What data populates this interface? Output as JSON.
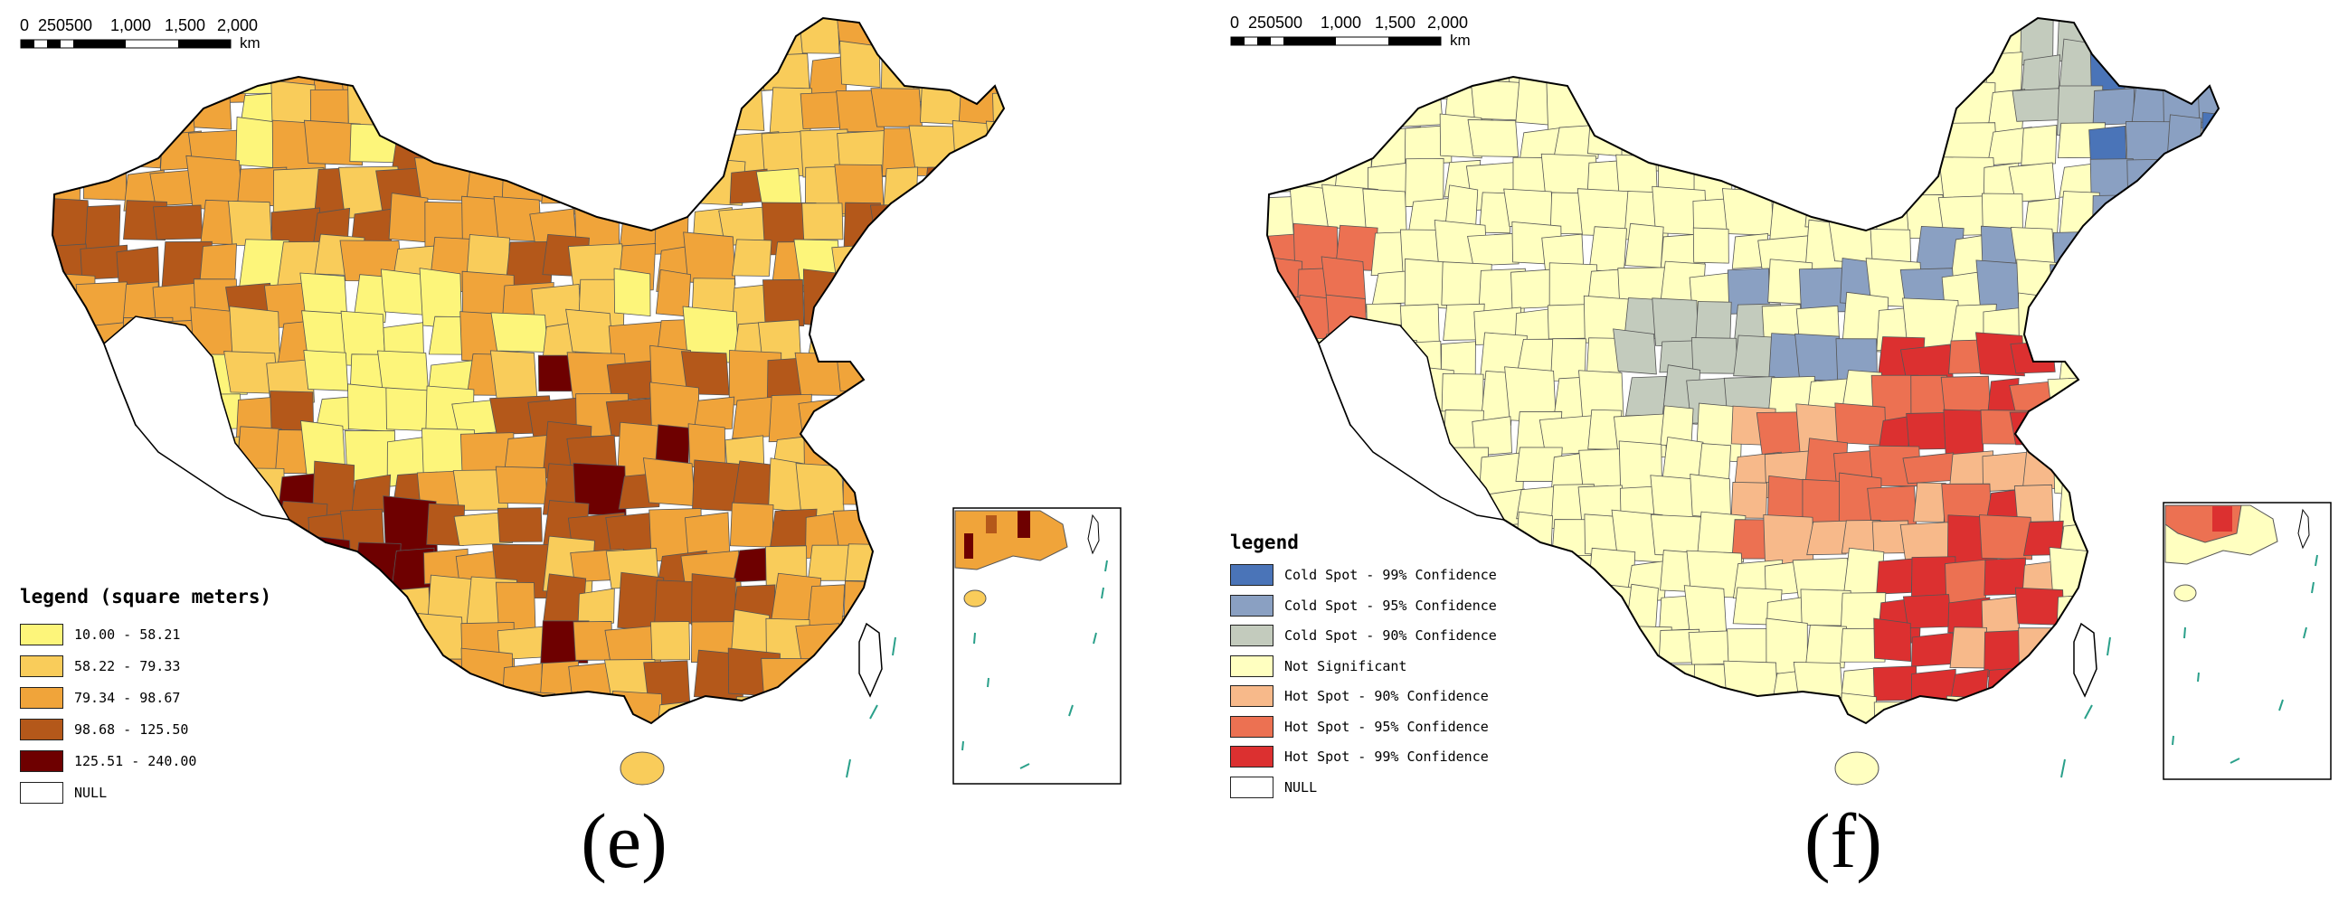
{
  "panels": {
    "e": {
      "caption": "(e)",
      "scale": {
        "ticks": [
          "0",
          "250500",
          "1,000",
          "1,500",
          "2,000"
        ],
        "unit": "km"
      },
      "legend": {
        "title": "legend (square meters)",
        "items": [
          {
            "label": "10.00 - 58.21",
            "color": "#fdf57a"
          },
          {
            "label": "58.22 - 79.33",
            "color": "#f9cc5a"
          },
          {
            "label": "79.34 - 98.67",
            "color": "#f0a43a"
          },
          {
            "label": "98.68 - 125.50",
            "color": "#b4581a"
          },
          {
            "label": "125.51 - 240.00",
            "color": "#6e0000"
          },
          {
            "label": "NULL",
            "color": "#ffffff"
          }
        ]
      }
    },
    "f": {
      "caption": "(f)",
      "scale": {
        "ticks": [
          "0",
          "250500",
          "1,000",
          "1,500",
          "2,000"
        ],
        "unit": "km"
      },
      "legend": {
        "title": "legend",
        "items": [
          {
            "label": "Cold Spot - 99% Confidence",
            "color": "#4a74b8"
          },
          {
            "label": "Cold Spot - 95% Confidence",
            "color": "#8aa0c2"
          },
          {
            "label": "Cold Spot - 90% Confidence",
            "color": "#c3cbbd"
          },
          {
            "label": "Not Significant",
            "color": "#ffffc0"
          },
          {
            "label": "Hot Spot - 90% Confidence",
            "color": "#f7b98a"
          },
          {
            "label": "Hot Spot - 95% Confidence",
            "color": "#ec7152"
          },
          {
            "label": "Hot Spot - 99% Confidence",
            "color": "#dc3030"
          },
          {
            "label": "NULL",
            "color": "#ffffff"
          }
        ]
      }
    }
  },
  "colors": {
    "border": "#555555",
    "outline": "#000000",
    "island_line": "#2aa08a"
  }
}
